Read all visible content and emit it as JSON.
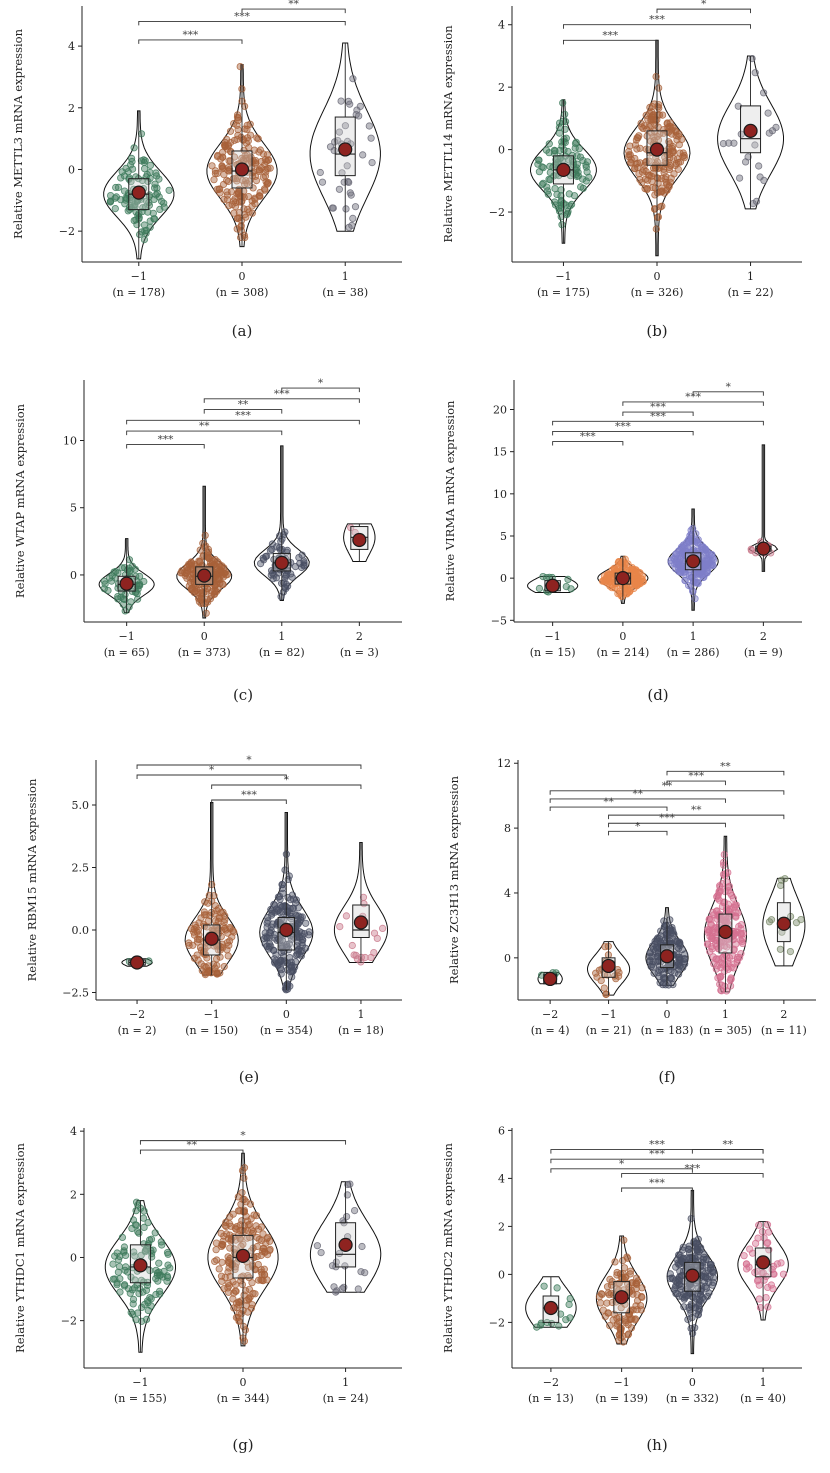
{
  "colors": {
    "green": "#3d7a5c",
    "brown": "#a8623a",
    "slate": "#4a4f63",
    "lavender": "#7f7fc9",
    "orange": "#e8864a",
    "pink": "#d57090",
    "rose": "#c97a8c",
    "dark": "#2b2b3a",
    "mean": "#8e2320"
  },
  "chart_data": [
    {
      "type": "violin",
      "panel": "(a)",
      "ylabel": "Relative METTL3 mRNA expression",
      "ylim": [
        -3,
        5.3
      ],
      "yticks": [
        -2,
        0,
        2,
        4
      ],
      "groups": [
        {
          "label": "−1",
          "n": "(n = 178)",
          "mean": -0.75,
          "q1": -1.3,
          "median": -0.8,
          "q3": -0.3,
          "min": -2.9,
          "max": 1.9,
          "color": "#3d7a5c",
          "npts": 110
        },
        {
          "label": "0",
          "n": "(n = 308)",
          "mean": 0.0,
          "q1": -0.6,
          "median": -0.05,
          "q3": 0.6,
          "min": -2.5,
          "max": 3.4,
          "color": "#a8623a",
          "npts": 190
        },
        {
          "label": "1",
          "n": "(n = 38)",
          "mean": 0.65,
          "q1": -0.2,
          "median": 0.5,
          "q3": 1.7,
          "min": -2.0,
          "max": 4.1,
          "color": "#6b6b78",
          "npts": 38
        }
      ],
      "comparisons": [
        {
          "from": 0,
          "to": 1,
          "y": 4.2,
          "stars": "***"
        },
        {
          "from": 0,
          "to": 2,
          "y": 4.8,
          "stars": "***"
        },
        {
          "from": 1,
          "to": 2,
          "y": 5.2,
          "stars": "**"
        }
      ]
    },
    {
      "type": "violin",
      "panel": "(b)",
      "ylabel": "Relative METTL14 mRNA expression",
      "ylim": [
        -3.6,
        4.6
      ],
      "yticks": [
        -2,
        0,
        2,
        4
      ],
      "groups": [
        {
          "label": "−1",
          "n": "(n = 175)",
          "mean": -0.65,
          "q1": -1.1,
          "median": -0.65,
          "q3": -0.2,
          "min": -3.0,
          "max": 1.6,
          "color": "#3d7a5c",
          "npts": 110
        },
        {
          "label": "0",
          "n": "(n = 326)",
          "mean": 0.0,
          "q1": -0.5,
          "median": -0.1,
          "q3": 0.6,
          "min": -3.4,
          "max": 3.5,
          "color": "#a8623a",
          "npts": 190
        },
        {
          "label": "1",
          "n": "(n = 22)",
          "mean": 0.6,
          "q1": -0.1,
          "median": 0.35,
          "q3": 1.4,
          "min": -1.9,
          "max": 3.0,
          "color": "#6b6b78",
          "npts": 22
        }
      ],
      "comparisons": [
        {
          "from": 0,
          "to": 1,
          "y": 3.5,
          "stars": "***"
        },
        {
          "from": 0,
          "to": 2,
          "y": 4.0,
          "stars": "***"
        },
        {
          "from": 1,
          "to": 2,
          "y": 4.5,
          "stars": "*"
        }
      ]
    },
    {
      "type": "violin",
      "panel": "(c)",
      "ylabel": "Relative WTAP mRNA expression",
      "ylim": [
        -3.5,
        14.5
      ],
      "yticks": [
        0,
        5,
        10
      ],
      "groups": [
        {
          "label": "−1",
          "n": "(n = 65)",
          "mean": -0.65,
          "q1": -1.2,
          "median": -0.7,
          "q3": -0.1,
          "min": -2.8,
          "max": 2.7,
          "color": "#3d7a5c",
          "npts": 55
        },
        {
          "label": "0",
          "n": "(n = 373)",
          "mean": -0.05,
          "q1": -0.7,
          "median": -0.1,
          "q3": 0.6,
          "min": -3.2,
          "max": 6.6,
          "color": "#a8623a",
          "npts": 190
        },
        {
          "label": "1",
          "n": "(n = 82)",
          "mean": 0.9,
          "q1": 0.3,
          "median": 0.9,
          "q3": 1.6,
          "min": -1.9,
          "max": 9.6,
          "color": "#4a4f63",
          "npts": 70
        },
        {
          "label": "2",
          "n": "(n = 3)",
          "mean": 2.6,
          "q1": 1.9,
          "median": 2.8,
          "q3": 3.6,
          "min": 1.0,
          "max": 3.8,
          "color": "#c97a8c",
          "npts": 3
        }
      ],
      "comparisons": [
        {
          "from": 0,
          "to": 1,
          "y": 9.7,
          "stars": "***"
        },
        {
          "from": 0,
          "to": 2,
          "y": 10.7,
          "stars": "**"
        },
        {
          "from": 0,
          "to": 3,
          "y": 11.5,
          "stars": "***"
        },
        {
          "from": 1,
          "to": 2,
          "y": 12.3,
          "stars": "**"
        },
        {
          "from": 1,
          "to": 3,
          "y": 13.1,
          "stars": "***"
        },
        {
          "from": 2,
          "to": 3,
          "y": 13.9,
          "stars": "*"
        }
      ]
    },
    {
      "type": "violin",
      "panel": "(d)",
      "ylabel": "Relative VIRMA mRNA expression",
      "ylim": [
        -5.2,
        23.5
      ],
      "yticks": [
        -5,
        0,
        5,
        10,
        15,
        20
      ],
      "groups": [
        {
          "label": "−1",
          "n": "(n = 15)",
          "mean": -0.9,
          "q1": -1.5,
          "median": -0.9,
          "q3": -0.3,
          "min": -1.7,
          "max": 0.2,
          "color": "#3d7a5c",
          "npts": 15
        },
        {
          "label": "0",
          "n": "(n = 214)",
          "mean": 0.0,
          "q1": -0.7,
          "median": 0.0,
          "q3": 0.6,
          "min": -3.0,
          "max": 2.6,
          "color": "#e8864a",
          "npts": 150
        },
        {
          "label": "1",
          "n": "(n = 286)",
          "mean": 2.0,
          "q1": 1.0,
          "median": 2.0,
          "q3": 3.0,
          "min": -3.8,
          "max": 8.2,
          "color": "#7f7fc9",
          "npts": 190
        },
        {
          "label": "2",
          "n": "(n = 9)",
          "mean": 3.5,
          "q1": 3.2,
          "median": 3.5,
          "q3": 3.8,
          "min": 0.8,
          "max": 15.8,
          "color": "#c97a8c",
          "npts": 9
        }
      ],
      "comparisons": [
        {
          "from": 0,
          "to": 1,
          "y": 16.2,
          "stars": "***"
        },
        {
          "from": 0,
          "to": 2,
          "y": 17.4,
          "stars": "***"
        },
        {
          "from": 0,
          "to": 3,
          "y": 18.6,
          "stars": "***"
        },
        {
          "from": 1,
          "to": 2,
          "y": 19.7,
          "stars": "***"
        },
        {
          "from": 1,
          "to": 3,
          "y": 20.9,
          "stars": "***"
        },
        {
          "from": 2,
          "to": 3,
          "y": 22.1,
          "stars": "*"
        }
      ]
    },
    {
      "type": "violin",
      "panel": "(e)",
      "ylabel": "Relative RBM15 mRNA expression",
      "ylim": [
        -2.8,
        6.8
      ],
      "yticks": [
        -2.5,
        0.0,
        2.5,
        5.0
      ],
      "yticklabels": [
        "−2.5",
        "0.0",
        "2.5",
        "5.0"
      ],
      "groups": [
        {
          "label": "−2",
          "n": "(n = 2)",
          "mean": -1.3,
          "q1": -1.4,
          "median": -1.3,
          "q3": -1.2,
          "min": -1.45,
          "max": -1.15,
          "color": "#3d7a5c",
          "npts": 2
        },
        {
          "label": "−1",
          "n": "(n = 150)",
          "mean": -0.35,
          "q1": -1.0,
          "median": -0.4,
          "q3": 0.2,
          "min": -1.8,
          "max": 5.1,
          "color": "#a8623a",
          "npts": 120
        },
        {
          "label": "0",
          "n": "(n = 354)",
          "mean": 0.0,
          "q1": -0.8,
          "median": -0.1,
          "q3": 0.5,
          "min": -2.4,
          "max": 4.7,
          "color": "#4a4f63",
          "npts": 190
        },
        {
          "label": "1",
          "n": "(n = 18)",
          "mean": 0.3,
          "q1": -0.3,
          "median": 0.0,
          "q3": 1.0,
          "min": -1.3,
          "max": 3.5,
          "color": "#c97a8c",
          "npts": 18
        }
      ],
      "comparisons": [
        {
          "from": 1,
          "to": 2,
          "y": 5.2,
          "stars": "***"
        },
        {
          "from": 1,
          "to": 3,
          "y": 5.8,
          "stars": "*"
        },
        {
          "from": 0,
          "to": 2,
          "y": 6.2,
          "stars": "*"
        },
        {
          "from": 0,
          "to": 3,
          "y": 6.6,
          "stars": "*"
        }
      ]
    },
    {
      "type": "violin",
      "panel": "(f)",
      "ylabel": "Relative ZC3H13 mRNA expression",
      "ylim": [
        -2.6,
        12.2
      ],
      "yticks": [
        0,
        4,
        8,
        12
      ],
      "groups": [
        {
          "label": "−2",
          "n": "(n = 4)",
          "mean": -1.3,
          "q1": -1.6,
          "median": -1.3,
          "q3": -1.0,
          "min": -1.6,
          "max": -0.9,
          "color": "#3d7a5c",
          "npts": 4
        },
        {
          "label": "−1",
          "n": "(n = 21)",
          "mean": -0.5,
          "q1": -1.2,
          "median": -0.7,
          "q3": 0.0,
          "min": -2.3,
          "max": 1.0,
          "color": "#a8623a",
          "npts": 21
        },
        {
          "label": "0",
          "n": "(n = 183)",
          "mean": 0.1,
          "q1": -0.6,
          "median": 0.0,
          "q3": 0.8,
          "min": -1.7,
          "max": 3.1,
          "color": "#4a4f63",
          "npts": 140
        },
        {
          "label": "1",
          "n": "(n = 305)",
          "mean": 1.6,
          "q1": 0.3,
          "median": 1.4,
          "q3": 2.7,
          "min": -2.1,
          "max": 7.5,
          "color": "#d57090",
          "npts": 190
        },
        {
          "label": "2",
          "n": "(n = 11)",
          "mean": 2.1,
          "q1": 1.0,
          "median": 2.0,
          "q3": 3.4,
          "min": -0.5,
          "max": 4.9,
          "color": "#7a8a6a",
          "npts": 11
        }
      ],
      "comparisons": [
        {
          "from": 1,
          "to": 2,
          "y": 7.8,
          "stars": "*"
        },
        {
          "from": 1,
          "to": 3,
          "y": 8.3,
          "stars": "***"
        },
        {
          "from": 1,
          "to": 4,
          "y": 8.8,
          "stars": "**"
        },
        {
          "from": 0,
          "to": 2,
          "y": 9.3,
          "stars": "**"
        },
        {
          "from": 0,
          "to": 3,
          "y": 9.8,
          "stars": "**"
        },
        {
          "from": 0,
          "to": 4,
          "y": 10.3,
          "stars": "**"
        },
        {
          "from": 2,
          "to": 3,
          "y": 10.9,
          "stars": "***"
        },
        {
          "from": 2,
          "to": 4,
          "y": 11.5,
          "stars": "**"
        }
      ]
    },
    {
      "type": "violin",
      "panel": "(g)",
      "ylabel": "Relative YTHDC1 mRNA expression",
      "ylim": [
        -3.5,
        4.1
      ],
      "yticks": [
        -2,
        0,
        2,
        4
      ],
      "groups": [
        {
          "label": "−1",
          "n": "(n = 155)",
          "mean": -0.25,
          "q1": -0.8,
          "median": -0.3,
          "q3": 0.4,
          "min": -3.0,
          "max": 1.8,
          "color": "#3d7a5c",
          "npts": 110
        },
        {
          "label": "0",
          "n": "(n = 344)",
          "mean": 0.05,
          "q1": -0.65,
          "median": 0.0,
          "q3": 0.7,
          "min": -2.8,
          "max": 3.3,
          "color": "#a8623a",
          "npts": 190
        },
        {
          "label": "1",
          "n": "(n = 24)",
          "mean": 0.4,
          "q1": -0.3,
          "median": 0.1,
          "q3": 1.1,
          "min": -1.1,
          "max": 2.4,
          "color": "#6b6b78",
          "npts": 24
        }
      ],
      "comparisons": [
        {
          "from": 0,
          "to": 1,
          "y": 3.4,
          "stars": "**"
        },
        {
          "from": 0,
          "to": 2,
          "y": 3.7,
          "stars": "*"
        }
      ]
    },
    {
      "type": "violin",
      "panel": "(h)",
      "ylabel": "Relative YTHDC2 mRNA expression",
      "ylim": [
        -3.9,
        6.1
      ],
      "yticks": [
        -2,
        0,
        2,
        4,
        6
      ],
      "groups": [
        {
          "label": "−2",
          "n": "(n = 13)",
          "mean": -1.4,
          "q1": -2.0,
          "median": -1.4,
          "q3": -0.9,
          "min": -2.2,
          "max": -0.1,
          "color": "#3d7a5c",
          "npts": 13
        },
        {
          "label": "−1",
          "n": "(n = 139)",
          "mean": -0.95,
          "q1": -1.6,
          "median": -1.0,
          "q3": -0.3,
          "min": -2.9,
          "max": 1.6,
          "color": "#a8623a",
          "npts": 110
        },
        {
          "label": "0",
          "n": "(n = 332)",
          "mean": -0.05,
          "q1": -0.7,
          "median": -0.1,
          "q3": 0.5,
          "min": -3.3,
          "max": 3.5,
          "color": "#4a4f63",
          "npts": 190
        },
        {
          "label": "1",
          "n": "(n = 40)",
          "mean": 0.5,
          "q1": -0.1,
          "median": 0.4,
          "q3": 1.1,
          "min": -1.9,
          "max": 2.2,
          "color": "#d57090",
          "npts": 40
        }
      ],
      "comparisons": [
        {
          "from": 1,
          "to": 2,
          "y": 3.6,
          "stars": "***"
        },
        {
          "from": 0,
          "to": 2,
          "y": 4.4,
          "stars": "*"
        },
        {
          "from": 0,
          "to": 2,
          "y": 4.4,
          "stars": ""
        },
        {
          "from": 1,
          "to": 3,
          "y": 4.2,
          "stars": "***"
        },
        {
          "from": 0,
          "to": 3,
          "y": 4.8,
          "stars": "***"
        },
        {
          "from": 0,
          "to": 3,
          "y": 5.2,
          "stars": "***"
        },
        {
          "from": 2,
          "to": 3,
          "y": 5.2,
          "stars": "**"
        }
      ]
    }
  ]
}
